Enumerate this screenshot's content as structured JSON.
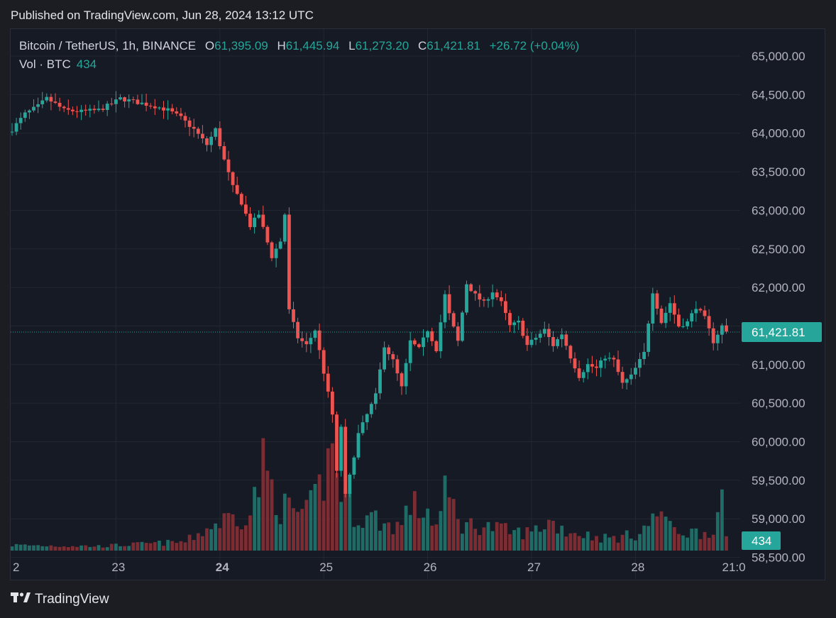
{
  "header": {
    "published": "Published on TradingView.com, Jun 28, 2024 13:12 UTC"
  },
  "legend": {
    "symbol": "Bitcoin / TetherUS, 1h, BINANCE",
    "o_label": "O",
    "o_value": "61,395.09",
    "h_label": "H",
    "h_value": "61,445.94",
    "l_label": "L",
    "l_value": "61,273.20",
    "c_label": "C",
    "c_value": "61,421.81",
    "change": "+26.72 (+0.04%)",
    "vol_label": "Vol · BTC",
    "vol_value": "434"
  },
  "footer": {
    "brand": "TradingView"
  },
  "colors": {
    "up": "#26a69a",
    "down": "#ef5350",
    "up_vol": "#1f6b66",
    "down_vol": "#7b2d33",
    "grid": "#232733"
  },
  "chart_data": {
    "type": "candlestick",
    "title": "Bitcoin / TetherUS, 1h, BINANCE",
    "ylim": [
      58220,
      65350
    ],
    "y_ticks": [
      65000,
      64500,
      64000,
      63500,
      63000,
      62500,
      62000,
      61500,
      61000,
      60500,
      60000,
      59500,
      59000,
      58500,
      58000
    ],
    "y_tick_labels": [
      "65,000.00",
      "64,500.00",
      "64,000.00",
      "63,500.00",
      "63,000.00",
      "62,500.00",
      "62,000.00",
      "61,500.00",
      "61,000.00",
      "60,500.00",
      "60,000.00",
      "59,500.00",
      "59,000.00",
      "58,500.00",
      "58,000.00"
    ],
    "x_tick_labels": [
      "2",
      "23",
      "24",
      "25",
      "26",
      "27",
      "28",
      "21:0"
    ],
    "x_tick_hours": [
      0,
      24,
      48,
      72,
      96,
      120,
      144,
      165
    ],
    "last_price": 61421.81,
    "last_price_label": "61,421.81",
    "last_volume_label": "434",
    "close_anchors": [
      [
        0,
        64050
      ],
      [
        3,
        64250
      ],
      [
        6,
        64350
      ],
      [
        8,
        64450
      ],
      [
        10,
        64380
      ],
      [
        12,
        64300
      ],
      [
        16,
        64280
      ],
      [
        20,
        64300
      ],
      [
        23,
        64380
      ],
      [
        25,
        64450
      ],
      [
        29,
        64400
      ],
      [
        33,
        64350
      ],
      [
        36,
        64300
      ],
      [
        39,
        64200
      ],
      [
        42,
        64050
      ],
      [
        45,
        63850
      ],
      [
        47,
        64050
      ],
      [
        49,
        63650
      ],
      [
        51,
        63300
      ],
      [
        53,
        63100
      ],
      [
        55,
        62800
      ],
      [
        57,
        62950
      ],
      [
        60,
        62400
      ],
      [
        62,
        62600
      ],
      [
        63,
        62950
      ],
      [
        64,
        61700
      ],
      [
        66,
        61350
      ],
      [
        68,
        61250
      ],
      [
        70,
        61450
      ],
      [
        72,
        60900
      ],
      [
        74,
        60350
      ],
      [
        75,
        59600
      ],
      [
        76,
        60200
      ],
      [
        77,
        59300
      ],
      [
        78,
        59550
      ],
      [
        80,
        60100
      ],
      [
        82,
        60350
      ],
      [
        84,
        60600
      ],
      [
        86,
        61250
      ],
      [
        88,
        61050
      ],
      [
        90,
        60700
      ],
      [
        92,
        61300
      ],
      [
        94,
        61200
      ],
      [
        96,
        61450
      ],
      [
        98,
        61200
      ],
      [
        100,
        61900
      ],
      [
        101,
        61650
      ],
      [
        103,
        61300
      ],
      [
        105,
        62050
      ],
      [
        107,
        61900
      ],
      [
        109,
        61800
      ],
      [
        111,
        61950
      ],
      [
        113,
        61800
      ],
      [
        115,
        61500
      ],
      [
        117,
        61550
      ],
      [
        119,
        61250
      ],
      [
        121,
        61350
      ],
      [
        123,
        61450
      ],
      [
        125,
        61250
      ],
      [
        127,
        61400
      ],
      [
        129,
        61100
      ],
      [
        131,
        60850
      ],
      [
        133,
        61000
      ],
      [
        135,
        60950
      ],
      [
        137,
        61100
      ],
      [
        139,
        61050
      ],
      [
        141,
        60750
      ],
      [
        143,
        60850
      ],
      [
        146,
        61150
      ],
      [
        148,
        61950
      ],
      [
        150,
        61550
      ],
      [
        152,
        61800
      ],
      [
        154,
        61500
      ],
      [
        156,
        61550
      ],
      [
        158,
        61750
      ],
      [
        160,
        61600
      ],
      [
        162,
        61300
      ],
      [
        164,
        61500
      ],
      [
        165,
        61420
      ]
    ],
    "volume_anchors": [
      [
        0,
        150
      ],
      [
        20,
        120
      ],
      [
        40,
        240
      ],
      [
        45,
        600
      ],
      [
        50,
        900
      ],
      [
        55,
        1000
      ],
      [
        58,
        2300
      ],
      [
        62,
        1200
      ],
      [
        68,
        1000
      ],
      [
        70,
        1400
      ],
      [
        72,
        2000
      ],
      [
        74,
        2800
      ],
      [
        76,
        1700
      ],
      [
        78,
        1200
      ],
      [
        80,
        900
      ],
      [
        84,
        900
      ],
      [
        86,
        700
      ],
      [
        90,
        700
      ],
      [
        92,
        1300
      ],
      [
        94,
        1100
      ],
      [
        96,
        1100
      ],
      [
        98,
        650
      ],
      [
        100,
        1500
      ],
      [
        102,
        1200
      ],
      [
        104,
        700
      ],
      [
        108,
        700
      ],
      [
        112,
        600
      ],
      [
        116,
        500
      ],
      [
        120,
        500
      ],
      [
        124,
        800
      ],
      [
        128,
        550
      ],
      [
        132,
        450
      ],
      [
        136,
        350
      ],
      [
        140,
        350
      ],
      [
        144,
        450
      ],
      [
        148,
        800
      ],
      [
        150,
        1200
      ],
      [
        152,
        600
      ],
      [
        156,
        500
      ],
      [
        160,
        500
      ],
      [
        162,
        650
      ],
      [
        164,
        1200
      ],
      [
        165,
        300
      ]
    ],
    "volume_max": 3600
  }
}
